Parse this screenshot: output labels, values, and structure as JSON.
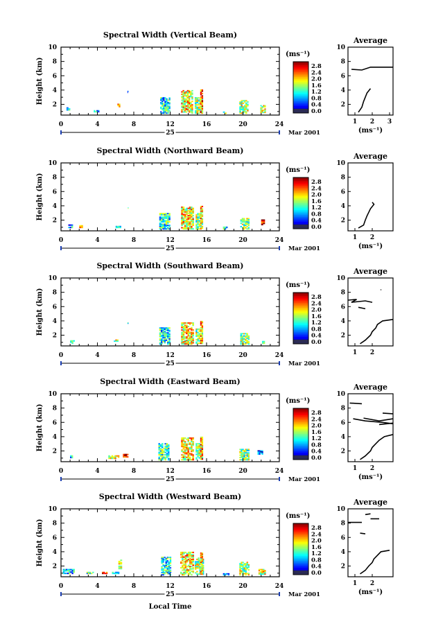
{
  "figure": {
    "date_label": "Mar 2001",
    "xlabel_bottom": "Local Time",
    "day_label": "25",
    "colorbar_unit": "(ms⁻¹)",
    "average_title": "Average"
  },
  "chart_data": [
    {
      "type": "heatmap",
      "title": "Spectral Width (Vertical Beam)",
      "ylabel": "Height (km)",
      "xlim": [
        0,
        24
      ],
      "ylim": [
        0.5,
        10
      ],
      "xticks": [
        0,
        4,
        8,
        12,
        16,
        20,
        24
      ],
      "yticks": [
        2,
        4,
        6,
        8,
        10
      ],
      "colorbar": {
        "range": [
          0,
          3.0
        ],
        "ticks": [
          "2.8",
          "2.4",
          "2.0",
          "1.6",
          "1.2",
          "0.8",
          "0.4",
          "0.0"
        ]
      },
      "cells": [
        {
          "t": 0.6,
          "h": 1.0,
          "w": 0.4,
          "hh": 0.6,
          "v": 1.1
        },
        {
          "t": 3.6,
          "h": 0.9,
          "w": 0.6,
          "hh": 0.3,
          "v": 0.9
        },
        {
          "t": 6.2,
          "h": 1.6,
          "w": 0.3,
          "hh": 0.5,
          "v": 2.0
        },
        {
          "t": 7.3,
          "h": 3.6,
          "w": 0.1,
          "hh": 0.3,
          "v": 1.0
        },
        {
          "t": 10.9,
          "h": 0.7,
          "w": 1.1,
          "hh": 2.3,
          "v": 1.1
        },
        {
          "t": 13.2,
          "h": 0.7,
          "w": 1.3,
          "hh": 3.3,
          "v": 1.9
        },
        {
          "t": 14.7,
          "h": 0.7,
          "w": 0.9,
          "hh": 2.3,
          "v": 1.6
        },
        {
          "t": 15.3,
          "h": 0.8,
          "w": 0.3,
          "hh": 3.3,
          "v": 2.2
        },
        {
          "t": 17.8,
          "h": 0.7,
          "w": 0.4,
          "hh": 0.3,
          "v": 1.2
        },
        {
          "t": 19.6,
          "h": 0.7,
          "w": 1.0,
          "hh": 1.9,
          "v": 1.6
        },
        {
          "t": 21.9,
          "h": 0.8,
          "w": 0.6,
          "hh": 1.1,
          "v": 1.7
        }
      ],
      "average": {
        "xlabel": "(ms⁻¹)",
        "xlim": [
          0.6,
          3.2
        ],
        "xticks": [
          1,
          2,
          3
        ],
        "ylim": [
          0.5,
          10
        ],
        "yticks": [
          2,
          4,
          6,
          8,
          10
        ],
        "lines": [
          [
            [
              1.2,
              0.9
            ],
            [
              1.4,
              1.6
            ],
            [
              1.5,
              2.4
            ],
            [
              1.6,
              3.0
            ],
            [
              1.7,
              3.6
            ],
            [
              1.9,
              4.2
            ]
          ],
          [
            [
              0.8,
              6.9
            ],
            [
              1.4,
              6.8
            ],
            [
              1.9,
              7.2
            ],
            [
              3.2,
              7.2
            ]
          ]
        ]
      }
    },
    {
      "type": "heatmap",
      "title": "Spectral Width (Northward Beam)",
      "ylabel": "Height (km)",
      "xlim": [
        0,
        24
      ],
      "ylim": [
        0.5,
        10
      ],
      "xticks": [
        0,
        4,
        8,
        12,
        16,
        20,
        24
      ],
      "yticks": [
        2,
        4,
        6,
        8,
        10
      ],
      "colorbar": {
        "range": [
          0,
          3.0
        ],
        "ticks": [
          "2.8",
          "2.4",
          "2.0",
          "1.6",
          "1.2",
          "0.8",
          "0.4",
          "0.0"
        ]
      },
      "cells": [
        {
          "t": 0.8,
          "h": 0.9,
          "w": 0.5,
          "hh": 0.5,
          "v": 1.0
        },
        {
          "t": 2.0,
          "h": 0.9,
          "w": 0.4,
          "hh": 0.4,
          "v": 1.8
        },
        {
          "t": 6.0,
          "h": 0.9,
          "w": 0.6,
          "hh": 0.3,
          "v": 1.1
        },
        {
          "t": 7.3,
          "h": 3.6,
          "w": 0.1,
          "hh": 0.2,
          "v": 1.0
        },
        {
          "t": 10.8,
          "h": 0.7,
          "w": 1.2,
          "hh": 2.3,
          "v": 1.2
        },
        {
          "t": 13.2,
          "h": 0.7,
          "w": 1.4,
          "hh": 3.2,
          "v": 1.9
        },
        {
          "t": 14.8,
          "h": 0.7,
          "w": 0.8,
          "hh": 2.3,
          "v": 1.6
        },
        {
          "t": 15.3,
          "h": 0.8,
          "w": 0.3,
          "hh": 3.2,
          "v": 2.1
        },
        {
          "t": 17.8,
          "h": 0.7,
          "w": 0.5,
          "hh": 0.4,
          "v": 1.0
        },
        {
          "t": 19.7,
          "h": 0.7,
          "w": 1.0,
          "hh": 1.6,
          "v": 1.5
        },
        {
          "t": 22.0,
          "h": 1.3,
          "w": 0.4,
          "hh": 0.8,
          "v": 2.6
        }
      ],
      "average": {
        "xlabel": "(ms⁻¹)",
        "xlim": [
          0.6,
          3.2
        ],
        "xticks": [
          1,
          2
        ],
        "ylim": [
          0.5,
          10
        ],
        "yticks": [
          2,
          4,
          6,
          8,
          10
        ],
        "lines": [
          [
            [
              1.2,
              0.9
            ],
            [
              1.5,
              1.3
            ],
            [
              1.6,
              2.0
            ],
            [
              1.7,
              2.6
            ],
            [
              1.8,
              3.1
            ],
            [
              1.9,
              3.6
            ],
            [
              2.1,
              4.2
            ],
            [
              2.0,
              4.5
            ]
          ]
        ]
      }
    },
    {
      "type": "heatmap",
      "title": "Spectral Width (Southward Beam)",
      "ylabel": "Height (km)",
      "xlim": [
        0,
        24
      ],
      "ylim": [
        0.5,
        10
      ],
      "xticks": [
        0,
        4,
        8,
        12,
        16,
        20,
        24
      ],
      "yticks": [
        2,
        4,
        6,
        8,
        10
      ],
      "colorbar": {
        "range": [
          0,
          3.0
        ],
        "ticks": [
          "2.8",
          "2.4",
          "2.0",
          "1.6",
          "1.2",
          "0.8",
          "0.4",
          "0.0"
        ]
      },
      "cells": [
        {
          "t": 1.0,
          "h": 0.8,
          "w": 0.5,
          "hh": 0.5,
          "v": 1.0
        },
        {
          "t": 5.8,
          "h": 1.1,
          "w": 0.5,
          "hh": 0.3,
          "v": 1.7
        },
        {
          "t": 7.3,
          "h": 3.6,
          "w": 0.1,
          "hh": 0.2,
          "v": 1.0
        },
        {
          "t": 10.8,
          "h": 0.7,
          "w": 1.2,
          "hh": 2.4,
          "v": 1.2
        },
        {
          "t": 13.2,
          "h": 0.7,
          "w": 1.4,
          "hh": 3.1,
          "v": 1.9
        },
        {
          "t": 14.8,
          "h": 0.8,
          "w": 0.8,
          "hh": 2.3,
          "v": 1.6
        },
        {
          "t": 15.3,
          "h": 0.8,
          "w": 0.3,
          "hh": 3.2,
          "v": 2.1
        },
        {
          "t": 19.7,
          "h": 0.7,
          "w": 1.0,
          "hh": 1.6,
          "v": 1.5
        },
        {
          "t": 22.1,
          "h": 0.8,
          "w": 0.3,
          "hh": 0.4,
          "v": 1.2
        }
      ],
      "average": {
        "xlabel": "",
        "xlim": [
          0.6,
          3.2
        ],
        "xticks": [
          1,
          2
        ],
        "ylim": [
          0.5,
          10
        ],
        "yticks": [
          2,
          4,
          6,
          8,
          10
        ],
        "lines": [
          [
            [
              1.3,
              0.8
            ],
            [
              1.6,
              1.3
            ],
            [
              1.9,
              2.0
            ],
            [
              2.0,
              2.5
            ],
            [
              2.2,
              3.0
            ],
            [
              2.3,
              3.5
            ],
            [
              2.6,
              4.0
            ],
            [
              3.2,
              4.2
            ]
          ],
          [
            [
              0.6,
              6.9
            ],
            [
              1.1,
              7.0
            ],
            [
              0.8,
              6.6
            ],
            [
              1.6,
              6.8
            ],
            [
              2.0,
              6.6
            ]
          ],
          [
            [
              1.2,
              5.9
            ],
            [
              1.6,
              5.7
            ]
          ],
          [
            [
              2.5,
              8.3
            ],
            [
              2.5,
              8.4
            ]
          ]
        ]
      }
    },
    {
      "type": "heatmap",
      "title": "Spectral Width (Eastward Beam)",
      "ylabel": "Height (km)",
      "xlim": [
        0,
        24
      ],
      "ylim": [
        0.5,
        10
      ],
      "xticks": [
        0,
        4,
        8,
        12,
        16,
        20,
        24
      ],
      "yticks": [
        2,
        4,
        6,
        8,
        10
      ],
      "colorbar": {
        "range": [
          0,
          3.0
        ],
        "ticks": [
          "2.8",
          "2.4",
          "2.0",
          "1.6",
          "1.2",
          "0.8",
          "0.4",
          "0.0"
        ]
      },
      "cells": [
        {
          "t": 1.0,
          "h": 1.0,
          "w": 0.3,
          "hh": 0.4,
          "v": 1.0
        },
        {
          "t": 5.2,
          "h": 0.9,
          "w": 1.2,
          "hh": 0.5,
          "v": 1.9
        },
        {
          "t": 6.8,
          "h": 1.1,
          "w": 0.6,
          "hh": 0.5,
          "v": 2.4
        },
        {
          "t": 10.7,
          "h": 0.7,
          "w": 1.2,
          "hh": 2.4,
          "v": 1.3
        },
        {
          "t": 13.2,
          "h": 0.7,
          "w": 1.4,
          "hh": 3.2,
          "v": 1.9
        },
        {
          "t": 14.8,
          "h": 0.8,
          "w": 0.8,
          "hh": 2.3,
          "v": 1.6
        },
        {
          "t": 15.3,
          "h": 0.8,
          "w": 0.3,
          "hh": 3.2,
          "v": 2.1
        },
        {
          "t": 19.6,
          "h": 0.7,
          "w": 1.1,
          "hh": 1.6,
          "v": 1.5
        },
        {
          "t": 21.6,
          "h": 1.5,
          "w": 0.6,
          "hh": 0.6,
          "v": 0.6
        }
      ],
      "average": {
        "xlabel": "(ms⁻¹)",
        "xlim": [
          0.6,
          3.2
        ],
        "xticks": [
          1,
          2
        ],
        "ylim": [
          0.5,
          10
        ],
        "yticks": [
          2,
          4,
          6,
          8,
          10
        ],
        "lines": [
          [
            [
              1.3,
              0.8
            ],
            [
              1.6,
              1.3
            ],
            [
              1.9,
              2.0
            ],
            [
              2.0,
              2.5
            ],
            [
              2.2,
              3.0
            ],
            [
              2.4,
              3.5
            ],
            [
              2.7,
              4.0
            ],
            [
              3.2,
              4.3
            ]
          ],
          [
            [
              0.9,
              6.5
            ],
            [
              1.6,
              6.2
            ],
            [
              2.6,
              6.0
            ],
            [
              3.2,
              5.8
            ]
          ],
          [
            [
              1.5,
              6.6
            ],
            [
              2.4,
              6.2
            ],
            [
              3.2,
              6.5
            ]
          ],
          [
            [
              2.4,
              5.7
            ],
            [
              3.2,
              5.9
            ]
          ],
          [
            [
              0.7,
              8.7
            ],
            [
              1.4,
              8.6
            ]
          ],
          [
            [
              2.6,
              7.3
            ],
            [
              3.2,
              7.2
            ]
          ]
        ]
      }
    },
    {
      "type": "heatmap",
      "title": "Spectral Width (Westward Beam)",
      "ylabel": "Height (km)",
      "xlim": [
        0,
        24
      ],
      "ylim": [
        0.5,
        10
      ],
      "xticks": [
        0,
        4,
        8,
        12,
        16,
        20,
        24
      ],
      "yticks": [
        2,
        4,
        6,
        8,
        10
      ],
      "colorbar": {
        "range": [
          0,
          3.0
        ],
        "ticks": [
          "2.8",
          "2.4",
          "2.0",
          "1.6",
          "1.2",
          "0.8",
          "0.4",
          "0.0"
        ]
      },
      "cells": [
        {
          "t": 0.2,
          "h": 0.9,
          "w": 1.3,
          "hh": 0.7,
          "v": 1.0
        },
        {
          "t": 2.8,
          "h": 0.9,
          "w": 0.8,
          "hh": 0.3,
          "v": 1.3
        },
        {
          "t": 4.5,
          "h": 0.9,
          "w": 0.6,
          "hh": 0.3,
          "v": 2.4
        },
        {
          "t": 5.6,
          "h": 0.9,
          "w": 0.8,
          "hh": 0.3,
          "v": 0.8
        },
        {
          "t": 6.3,
          "h": 1.4,
          "w": 0.4,
          "hh": 1.5,
          "v": 1.9
        },
        {
          "t": 11.0,
          "h": 0.7,
          "w": 1.1,
          "hh": 2.6,
          "v": 1.2
        },
        {
          "t": 13.1,
          "h": 0.7,
          "w": 1.5,
          "hh": 3.3,
          "v": 1.9
        },
        {
          "t": 14.7,
          "h": 0.8,
          "w": 1.0,
          "hh": 2.4,
          "v": 1.6
        },
        {
          "t": 15.3,
          "h": 0.8,
          "w": 0.3,
          "hh": 3.1,
          "v": 2.0
        },
        {
          "t": 17.8,
          "h": 0.7,
          "w": 0.7,
          "hh": 0.3,
          "v": 1.0
        },
        {
          "t": 19.6,
          "h": 0.7,
          "w": 1.1,
          "hh": 1.9,
          "v": 1.6
        },
        {
          "t": 21.7,
          "h": 0.8,
          "w": 0.8,
          "hh": 0.8,
          "v": 1.8
        }
      ],
      "average": {
        "xlabel": "(ms⁻¹)",
        "xlim": [
          0.6,
          3.2
        ],
        "xticks": [
          1,
          2
        ],
        "ylim": [
          0.5,
          10
        ],
        "yticks": [
          2,
          4,
          6,
          8,
          10
        ],
        "lines": [
          [
            [
              1.3,
              0.9
            ],
            [
              1.6,
              1.4
            ],
            [
              1.8,
              2.0
            ],
            [
              2.0,
              2.5
            ],
            [
              2.1,
              3.0
            ],
            [
              2.3,
              3.5
            ],
            [
              2.5,
              4.0
            ],
            [
              3.0,
              4.2
            ]
          ],
          [
            [
              0.6,
              8.1
            ],
            [
              1.4,
              8.1
            ]
          ],
          [
            [
              1.6,
              9.2
            ],
            [
              1.9,
              9.3
            ]
          ],
          [
            [
              1.9,
              8.6
            ],
            [
              2.4,
              8.6
            ]
          ],
          [
            [
              1.3,
              6.6
            ],
            [
              1.6,
              6.5
            ]
          ]
        ]
      }
    }
  ]
}
